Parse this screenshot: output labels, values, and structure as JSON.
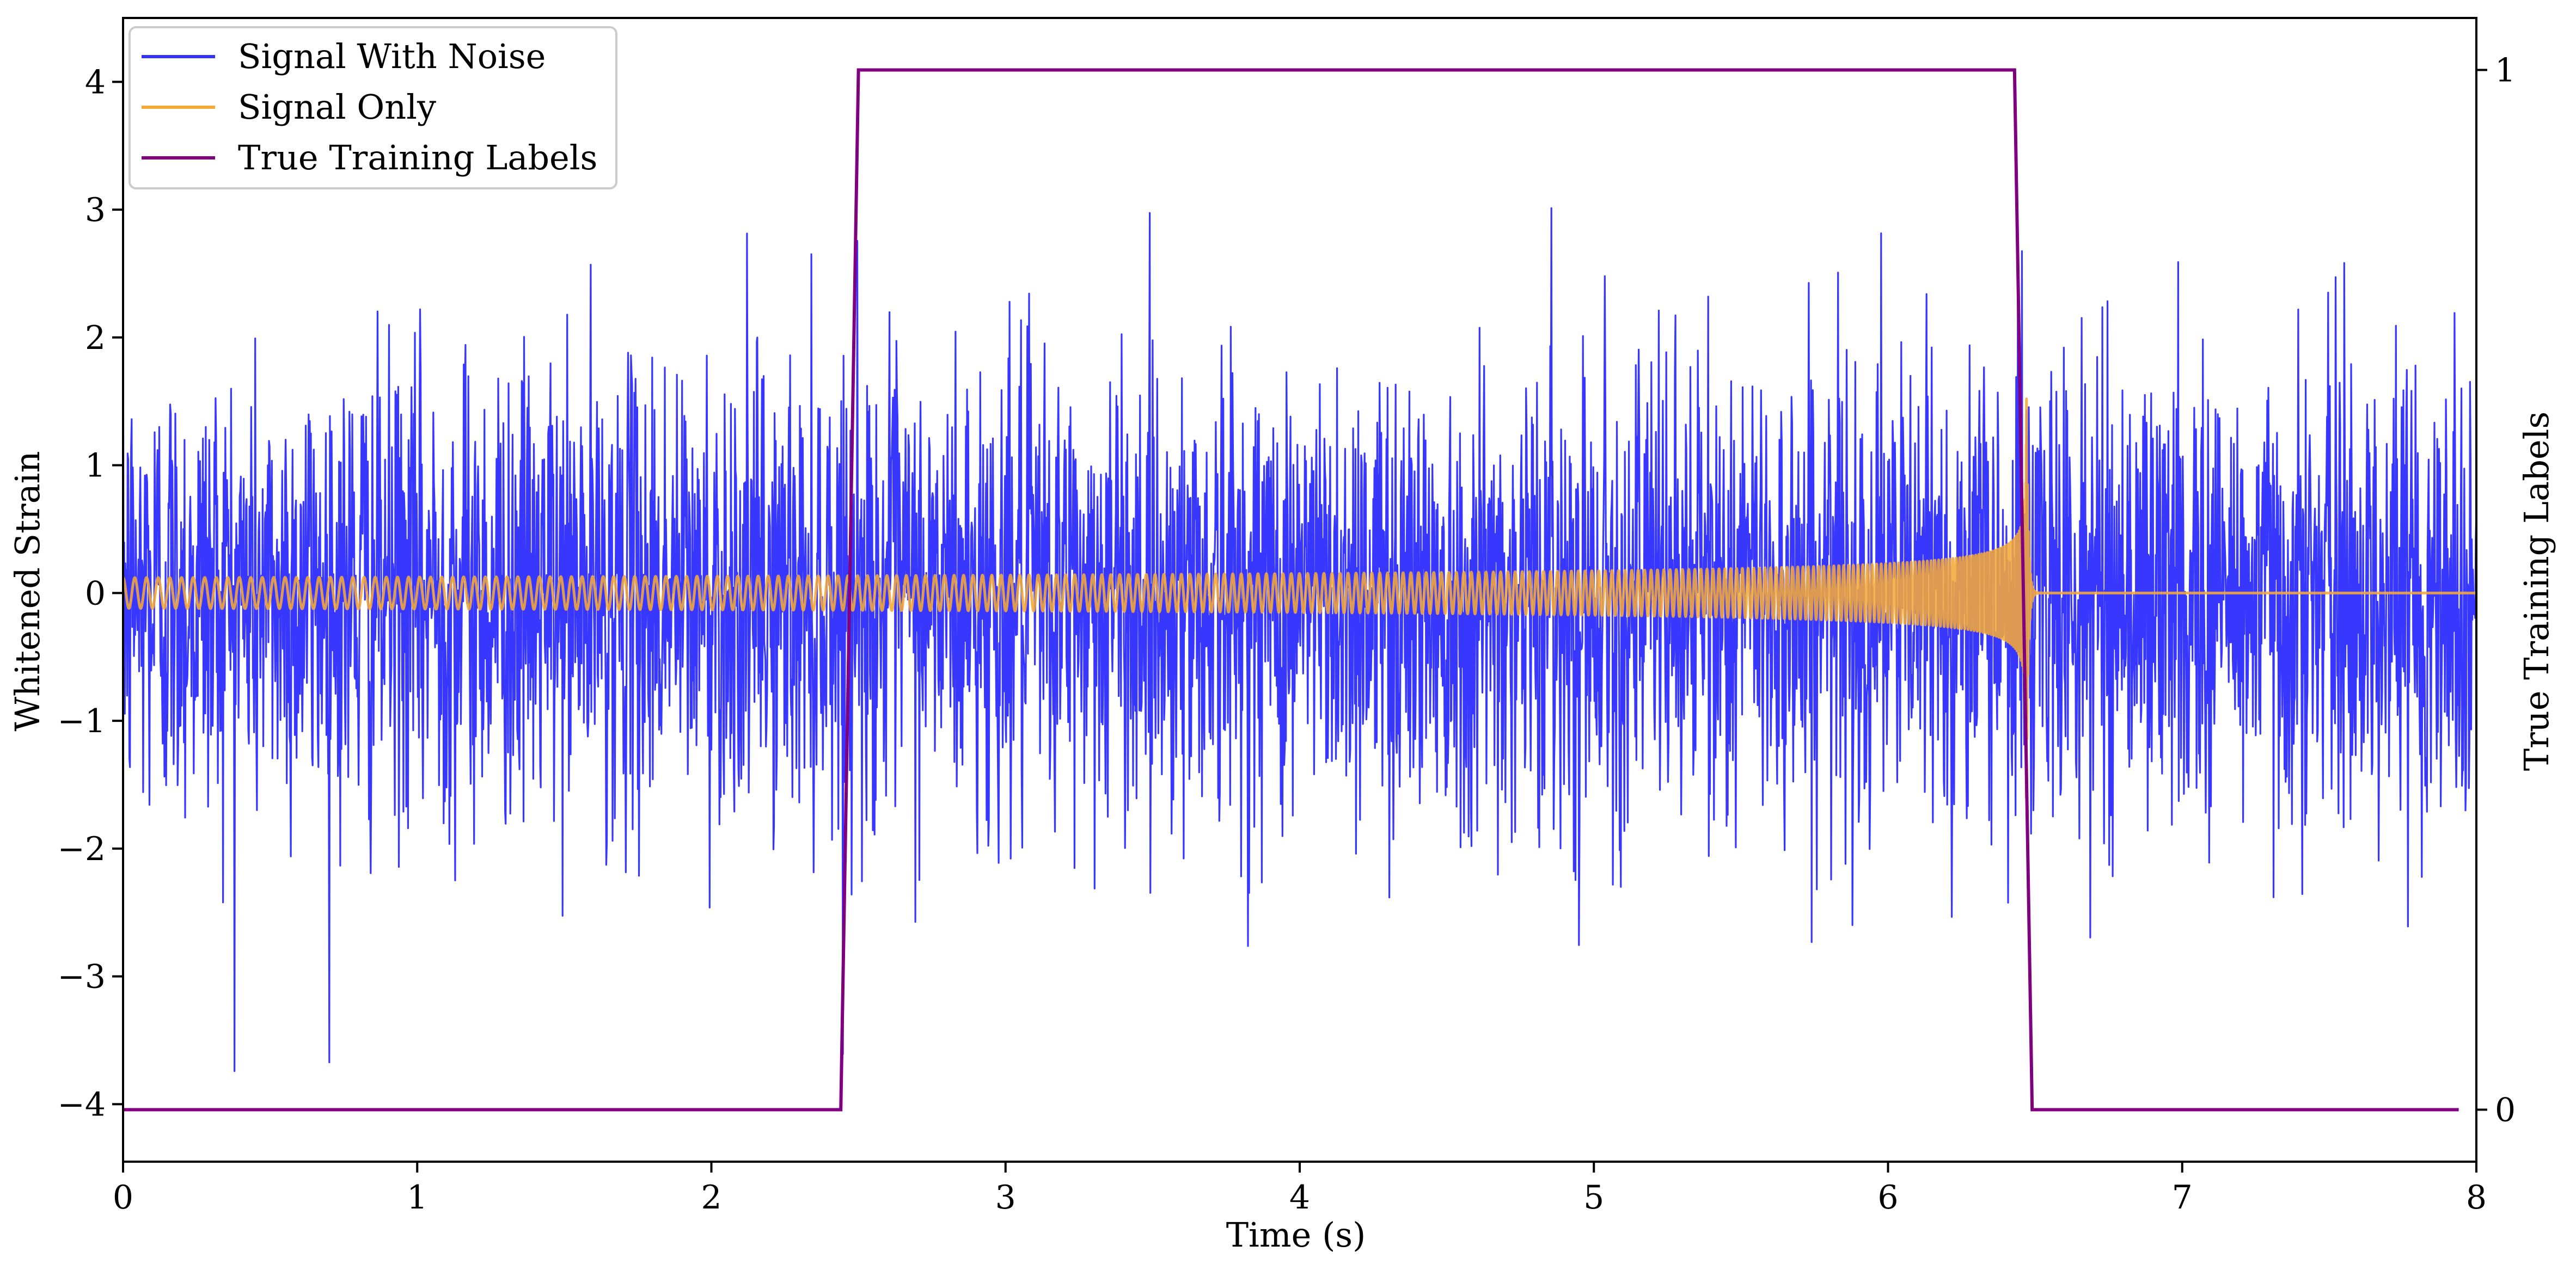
{
  "chart_data": {
    "type": "line",
    "title": "",
    "xlabel": "Time (s)",
    "ylabel": "Whitened Strain",
    "y2label": "True Training Labels",
    "xlim": [
      0,
      8
    ],
    "ylim": [
      -4.45,
      4.5
    ],
    "y2lim": [
      -0.05,
      1.05
    ],
    "xticks": [
      0,
      1,
      2,
      3,
      4,
      5,
      6,
      7,
      8
    ],
    "yticks": [
      -4,
      -3,
      -2,
      -1,
      0,
      1,
      2,
      3,
      4
    ],
    "y2ticks": [
      0,
      1
    ],
    "grid": false,
    "legend": {
      "position": "top-left"
    },
    "series": [
      {
        "name": "Signal With Noise",
        "axis": "left",
        "color": "#3333ff",
        "kind": "noise",
        "sample_rate": 512,
        "std": 0.9,
        "min": -4.0,
        "max": 3.4
      },
      {
        "name": "Signal Only",
        "axis": "left",
        "color": "#f4a93a",
        "kind": "chirp",
        "t_merge": 6.47,
        "start_frequency": 25,
        "start_amplitude": 0.12,
        "peak_amplitude": 1.7
      },
      {
        "name": "True Training Labels",
        "axis": "right",
        "color": "#800080",
        "x": [
          0,
          2.44,
          2.5,
          6.43,
          6.49,
          7.94
        ],
        "y": [
          0,
          0,
          1,
          1,
          0,
          0
        ]
      }
    ]
  }
}
